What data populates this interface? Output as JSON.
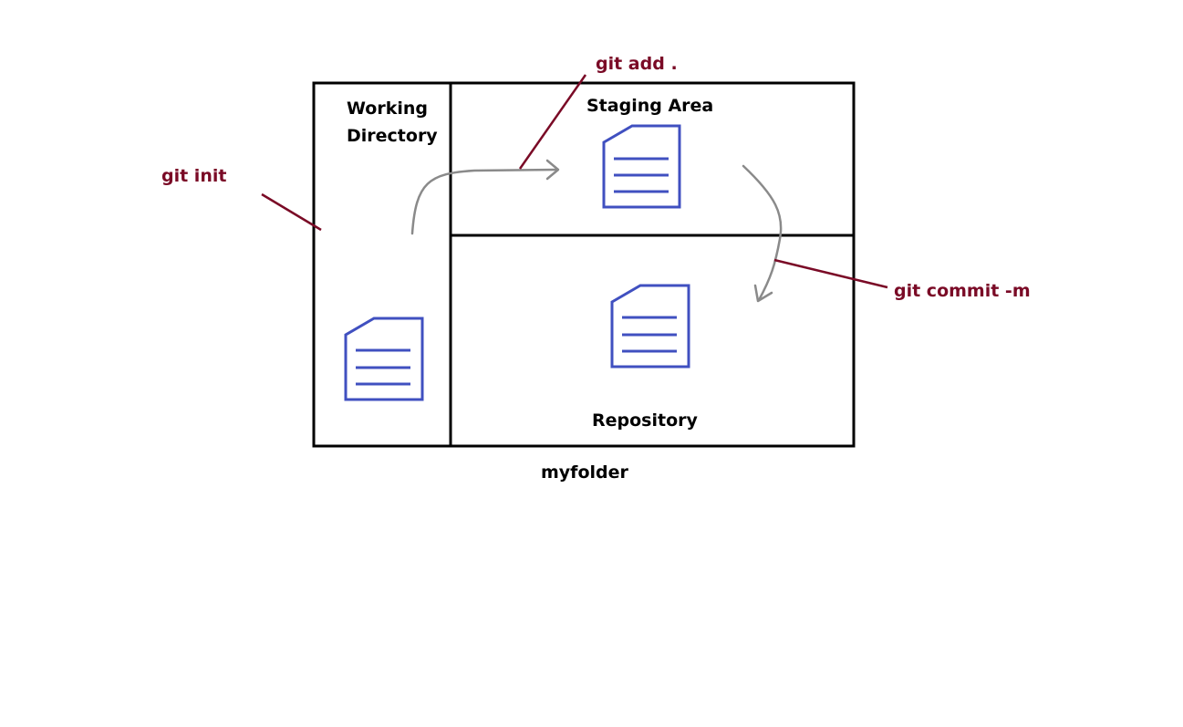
{
  "labels": {
    "working_directory_line1": "Working",
    "working_directory_line2": "Directory",
    "staging_area": "Staging Area",
    "repository": "Repository",
    "folder": "myfolder"
  },
  "commands": {
    "init": "git init",
    "add": "git add .",
    "commit": "git commit -m"
  },
  "colors": {
    "command_text": "#7a0a26",
    "document": "#4050c0",
    "arrow": "#8a8a8a",
    "box": "#000000"
  },
  "icons": [
    "document-icon",
    "curved-arrow"
  ]
}
